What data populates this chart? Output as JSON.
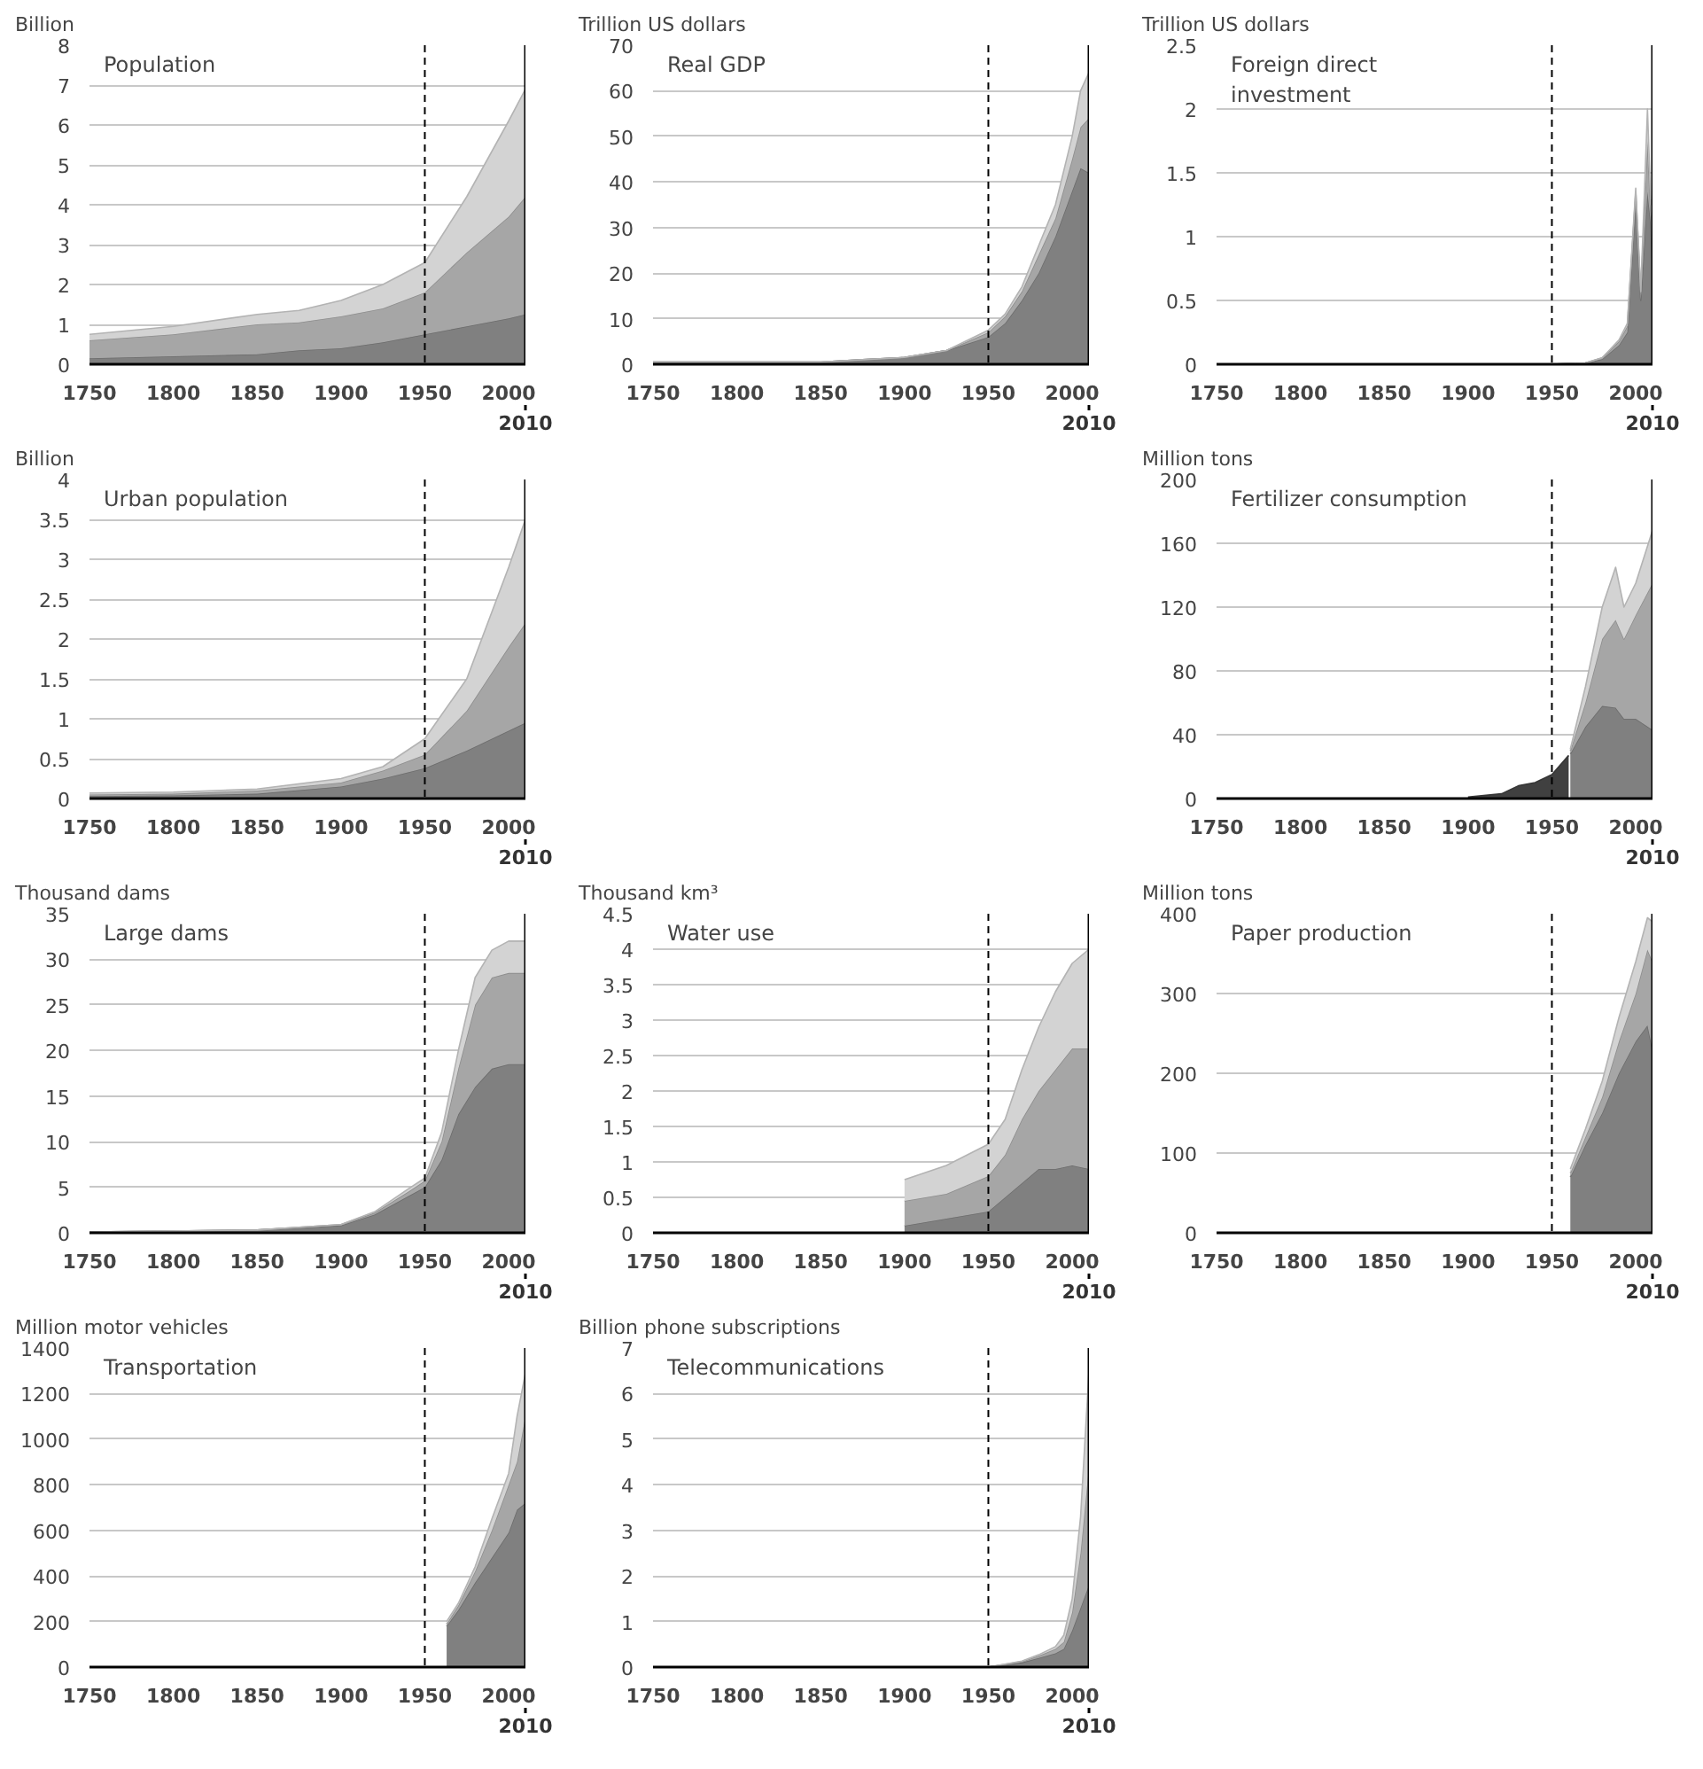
{
  "chart_data": [
    {
      "type": "area",
      "stacked": true,
      "title": "Population",
      "ylabel": "Billion",
      "grid": "y",
      "xlim": [
        1750,
        2010
      ],
      "xticks": [
        1750,
        1800,
        1850,
        1900,
        1950,
        2000
      ],
      "annotations": [
        "2010"
      ],
      "ylim": [
        0,
        8
      ],
      "yticks": [
        0,
        1,
        2,
        3,
        4,
        5,
        6,
        7,
        8
      ],
      "ref_lines": [
        {
          "axis": "x",
          "value": 1950,
          "color": "#000000",
          "line_style": "dashed"
        }
      ],
      "x": [
        1750,
        1800,
        1850,
        1875,
        1900,
        1925,
        1950,
        1975,
        2000,
        2010
      ],
      "series": [
        {
          "color": "#808080",
          "values": [
            0.15,
            0.2,
            0.25,
            0.35,
            0.4,
            0.55,
            0.75,
            0.95,
            1.15,
            1.25
          ]
        },
        {
          "color": "#a6a6a6",
          "values": [
            0.45,
            0.55,
            0.75,
            0.7,
            0.8,
            0.85,
            1.05,
            1.85,
            2.55,
            2.95
          ]
        },
        {
          "color": "#d3d3d3",
          "values": [
            0.15,
            0.2,
            0.25,
            0.3,
            0.4,
            0.6,
            0.75,
            1.4,
            2.4,
            2.7
          ]
        }
      ]
    },
    {
      "type": "area",
      "stacked": true,
      "title": "Real GDP",
      "ylabel": "Trillion US dollars",
      "grid": "y",
      "xlim": [
        1750,
        2010
      ],
      "xticks": [
        1750,
        1800,
        1850,
        1900,
        1950,
        2000
      ],
      "annotations": [
        "2010"
      ],
      "ylim": [
        0,
        70
      ],
      "yticks": [
        0,
        10,
        20,
        30,
        40,
        50,
        60,
        70
      ],
      "ref_lines": [
        {
          "axis": "x",
          "value": 1950,
          "color": "#000000",
          "line_style": "dashed"
        }
      ],
      "x": [
        1750,
        1850,
        1875,
        1900,
        1925,
        1950,
        1960,
        1970,
        1980,
        1990,
        2000,
        2005,
        2010
      ],
      "series": [
        {
          "color": "#808080",
          "values": [
            0.5,
            0.5,
            1,
            1.5,
            3,
            6,
            9,
            14,
            20,
            28,
            38,
            43,
            42
          ]
        },
        {
          "color": "#a6a6a6",
          "values": [
            0,
            0,
            0,
            0,
            0,
            1,
            1.5,
            2,
            4,
            4,
            7,
            9,
            12
          ]
        },
        {
          "color": "#d3d3d3",
          "values": [
            0,
            0,
            0,
            0,
            0,
            0.5,
            0.5,
            1,
            2,
            3,
            5,
            8,
            10
          ]
        }
      ]
    },
    {
      "type": "area",
      "stacked": true,
      "title": "Foreign direct investment",
      "ylabel": "Trillion US dollars",
      "grid": "y",
      "xlim": [
        1750,
        2010
      ],
      "xticks": [
        1750,
        1800,
        1850,
        1900,
        1950,
        2000
      ],
      "annotations": [
        "2010"
      ],
      "ylim": [
        0,
        2.5
      ],
      "yticks": [
        0,
        0.5,
        1,
        1.5,
        2,
        2.5
      ],
      "ref_lines": [
        {
          "axis": "x",
          "value": 1950,
          "color": "#000000",
          "line_style": "dashed"
        }
      ],
      "x": [
        1750,
        1950,
        1970,
        1980,
        1990,
        1995,
        2000,
        2003,
        2007,
        2009,
        2010
      ],
      "series": [
        {
          "color": "#808080",
          "values": [
            0,
            0,
            0.01,
            0.04,
            0.15,
            0.25,
            1.3,
            0.5,
            1.35,
            1.1,
            0.8
          ]
        },
        {
          "color": "#a6a6a6",
          "values": [
            0,
            0,
            0,
            0.01,
            0.03,
            0.05,
            0.05,
            0.05,
            0.4,
            0.1,
            0.3
          ]
        },
        {
          "color": "#d3d3d3",
          "values": [
            0,
            0,
            0,
            0,
            0.01,
            0.02,
            0.03,
            0.02,
            0.25,
            0.05,
            0.2
          ]
        }
      ]
    },
    {
      "type": "area",
      "stacked": true,
      "title": "Urban population",
      "ylabel": "Billion",
      "grid": "y",
      "xlim": [
        1750,
        2010
      ],
      "xticks": [
        1750,
        1800,
        1850,
        1900,
        1950,
        2000
      ],
      "annotations": [
        "2010"
      ],
      "ylim": [
        0,
        4
      ],
      "yticks": [
        0,
        0.5,
        1,
        1.5,
        2,
        2.5,
        3,
        3.5,
        4
      ],
      "ref_lines": [
        {
          "axis": "x",
          "value": 1950,
          "color": "#000000",
          "line_style": "dashed"
        }
      ],
      "x": [
        1750,
        1800,
        1850,
        1900,
        1925,
        1950,
        1975,
        2000,
        2010
      ],
      "series": [
        {
          "color": "#808080",
          "values": [
            0.03,
            0.04,
            0.06,
            0.15,
            0.25,
            0.38,
            0.6,
            0.85,
            0.95
          ]
        },
        {
          "color": "#a6a6a6",
          "values": [
            0.02,
            0.02,
            0.04,
            0.05,
            0.1,
            0.17,
            0.5,
            1.05,
            1.25
          ]
        },
        {
          "color": "#d3d3d3",
          "values": [
            0.02,
            0.02,
            0.02,
            0.05,
            0.05,
            0.2,
            0.4,
            1.0,
            1.3
          ]
        }
      ]
    },
    {
      "type": "area",
      "stacked": true,
      "title": "Fertilizer consumption",
      "ylabel": "Million tons",
      "grid": "y",
      "xlim": [
        1750,
        2010
      ],
      "xticks": [
        1750,
        1800,
        1850,
        1900,
        1950,
        2000
      ],
      "annotations": [
        "2010"
      ],
      "ylim": [
        0,
        200
      ],
      "yticks": [
        0,
        40,
        80,
        120,
        160,
        200
      ],
      "ref_lines": [
        {
          "axis": "x",
          "value": 1950,
          "color": "#000000",
          "line_style": "dashed"
        }
      ],
      "x": [
        1900,
        1920,
        1930,
        1940,
        1950,
        1960,
        1961,
        1970,
        1980,
        1988,
        1993,
        2000,
        2010
      ],
      "series": [
        {
          "color": "#404040",
          "values": [
            1,
            3,
            8,
            10,
            15,
            27,
            null,
            null,
            null,
            null,
            null,
            null,
            null
          ]
        },
        {
          "color": "#808080",
          "values": [
            null,
            null,
            null,
            null,
            null,
            null,
            28,
            45,
            58,
            57,
            50,
            50,
            43
          ]
        },
        {
          "color": "#a6a6a6",
          "values": [
            null,
            null,
            null,
            null,
            null,
            null,
            2,
            15,
            42,
            55,
            50,
            65,
            92
          ]
        },
        {
          "color": "#d3d3d3",
          "values": [
            null,
            null,
            null,
            null,
            null,
            null,
            1,
            10,
            20,
            33,
            20,
            20,
            33
          ]
        }
      ]
    },
    {
      "type": "area",
      "stacked": true,
      "title": "Large dams",
      "ylabel": "Thousand dams",
      "grid": "y",
      "xlim": [
        1750,
        2010
      ],
      "xticks": [
        1750,
        1800,
        1850,
        1900,
        1950,
        2000
      ],
      "annotations": [
        "2010"
      ],
      "ylim": [
        0,
        35
      ],
      "yticks": [
        0,
        5,
        10,
        15,
        20,
        25,
        30,
        35
      ],
      "ref_lines": [
        {
          "axis": "x",
          "value": 1950,
          "color": "#000000",
          "line_style": "dashed"
        }
      ],
      "x": [
        1750,
        1850,
        1900,
        1920,
        1940,
        1950,
        1960,
        1970,
        1980,
        1990,
        2000,
        2010
      ],
      "series": [
        {
          "color": "#808080",
          "values": [
            0.1,
            0.3,
            0.8,
            2,
            4,
            5,
            8,
            13,
            16,
            18,
            18.5,
            18.5
          ]
        },
        {
          "color": "#a6a6a6",
          "values": [
            0,
            0,
            0.1,
            0.2,
            0.5,
            0.7,
            2,
            5,
            9,
            10,
            10,
            10
          ]
        },
        {
          "color": "#d3d3d3",
          "values": [
            0,
            0,
            0,
            0.1,
            0.3,
            0.3,
            1,
            2,
            3,
            3,
            3.5,
            3.5
          ]
        }
      ]
    },
    {
      "type": "area",
      "stacked": true,
      "title": "Water use",
      "ylabel": "Thousand km³",
      "grid": "y",
      "xlim": [
        1750,
        2010
      ],
      "xticks": [
        1750,
        1800,
        1850,
        1900,
        1950,
        2000
      ],
      "annotations": [
        "2010"
      ],
      "ylim": [
        0,
        4.5
      ],
      "yticks": [
        0,
        0.5,
        1,
        1.5,
        2,
        2.5,
        3,
        3.5,
        4,
        4.5
      ],
      "ref_lines": [
        {
          "axis": "x",
          "value": 1950,
          "color": "#000000",
          "line_style": "dashed"
        }
      ],
      "x": [
        1900,
        1925,
        1950,
        1960,
        1970,
        1980,
        1990,
        2000,
        2010
      ],
      "series": [
        {
          "color": "#808080",
          "values": [
            0.1,
            0.2,
            0.3,
            0.5,
            0.7,
            0.9,
            0.9,
            0.95,
            0.9
          ]
        },
        {
          "color": "#a6a6a6",
          "values": [
            0.35,
            0.35,
            0.5,
            0.6,
            0.9,
            1.1,
            1.4,
            1.65,
            1.7
          ]
        },
        {
          "color": "#d3d3d3",
          "values": [
            0.3,
            0.4,
            0.45,
            0.5,
            0.7,
            0.9,
            1.1,
            1.2,
            1.4
          ]
        }
      ]
    },
    {
      "type": "area",
      "stacked": true,
      "title": "Paper production",
      "ylabel": "Million tons",
      "grid": "y",
      "xlim": [
        1750,
        2010
      ],
      "xticks": [
        1750,
        1800,
        1850,
        1900,
        1950,
        2000
      ],
      "annotations": [
        "2010"
      ],
      "ylim": [
        0,
        400
      ],
      "yticks": [
        0,
        100,
        200,
        300,
        400
      ],
      "ref_lines": [
        {
          "axis": "x",
          "value": 1950,
          "color": "#000000",
          "line_style": "dashed"
        }
      ],
      "x": [
        1961,
        1970,
        1980,
        1990,
        2000,
        2007,
        2010
      ],
      "series": [
        {
          "color": "#808080",
          "values": [
            70,
            110,
            150,
            200,
            240,
            260,
            230
          ]
        },
        {
          "color": "#a6a6a6",
          "values": [
            5,
            10,
            20,
            40,
            60,
            95,
            110
          ]
        },
        {
          "color": "#d3d3d3",
          "values": [
            5,
            10,
            20,
            30,
            40,
            40,
            50
          ]
        }
      ]
    },
    {
      "type": "area",
      "stacked": true,
      "title": "Transportation",
      "ylabel": "Million motor vehicles",
      "grid": "y",
      "xlim": [
        1750,
        2010
      ],
      "xticks": [
        1750,
        1800,
        1850,
        1900,
        1950,
        2000
      ],
      "annotations": [
        "2010"
      ],
      "ylim": [
        0,
        1400
      ],
      "yticks": [
        0,
        200,
        400,
        600,
        800,
        1000,
        1200,
        1400
      ],
      "ref_lines": [
        {
          "axis": "x",
          "value": 1950,
          "color": "#000000",
          "line_style": "dashed"
        }
      ],
      "x": [
        1963,
        1970,
        1980,
        1990,
        2000,
        2005,
        2010
      ],
      "series": [
        {
          "color": "#808080",
          "values": [
            180,
            250,
            370,
            480,
            590,
            690,
            720
          ]
        },
        {
          "color": "#a6a6a6",
          "values": [
            10,
            20,
            50,
            120,
            210,
            210,
            380
          ]
        },
        {
          "color": "#d3d3d3",
          "values": [
            10,
            10,
            20,
            50,
            50,
            200,
            190
          ]
        }
      ]
    },
    {
      "type": "area",
      "stacked": true,
      "title": "Telecommunications",
      "ylabel": "Billion phone subscriptions",
      "grid": "y",
      "xlim": [
        1750,
        2010
      ],
      "xticks": [
        1750,
        1800,
        1850,
        1900,
        1950,
        2000
      ],
      "annotations": [
        "2010"
      ],
      "ylim": [
        0,
        7
      ],
      "yticks": [
        0,
        1,
        2,
        3,
        4,
        5,
        6,
        7
      ],
      "ref_lines": [
        {
          "axis": "x",
          "value": 1950,
          "color": "#000000",
          "line_style": "dashed"
        }
      ],
      "x": [
        1950,
        1970,
        1980,
        1990,
        1995,
        2000,
        2005,
        2010
      ],
      "series": [
        {
          "color": "#808080",
          "values": [
            0,
            0.1,
            0.2,
            0.3,
            0.4,
            0.8,
            1.3,
            1.8
          ]
        },
        {
          "color": "#a6a6a6",
          "values": [
            0,
            0.02,
            0.05,
            0.1,
            0.15,
            0.4,
            1.2,
            2.6
          ]
        },
        {
          "color": "#d3d3d3",
          "values": [
            0,
            0.01,
            0.02,
            0.05,
            0.15,
            0.3,
            0.8,
            2.1
          ]
        }
      ]
    }
  ]
}
